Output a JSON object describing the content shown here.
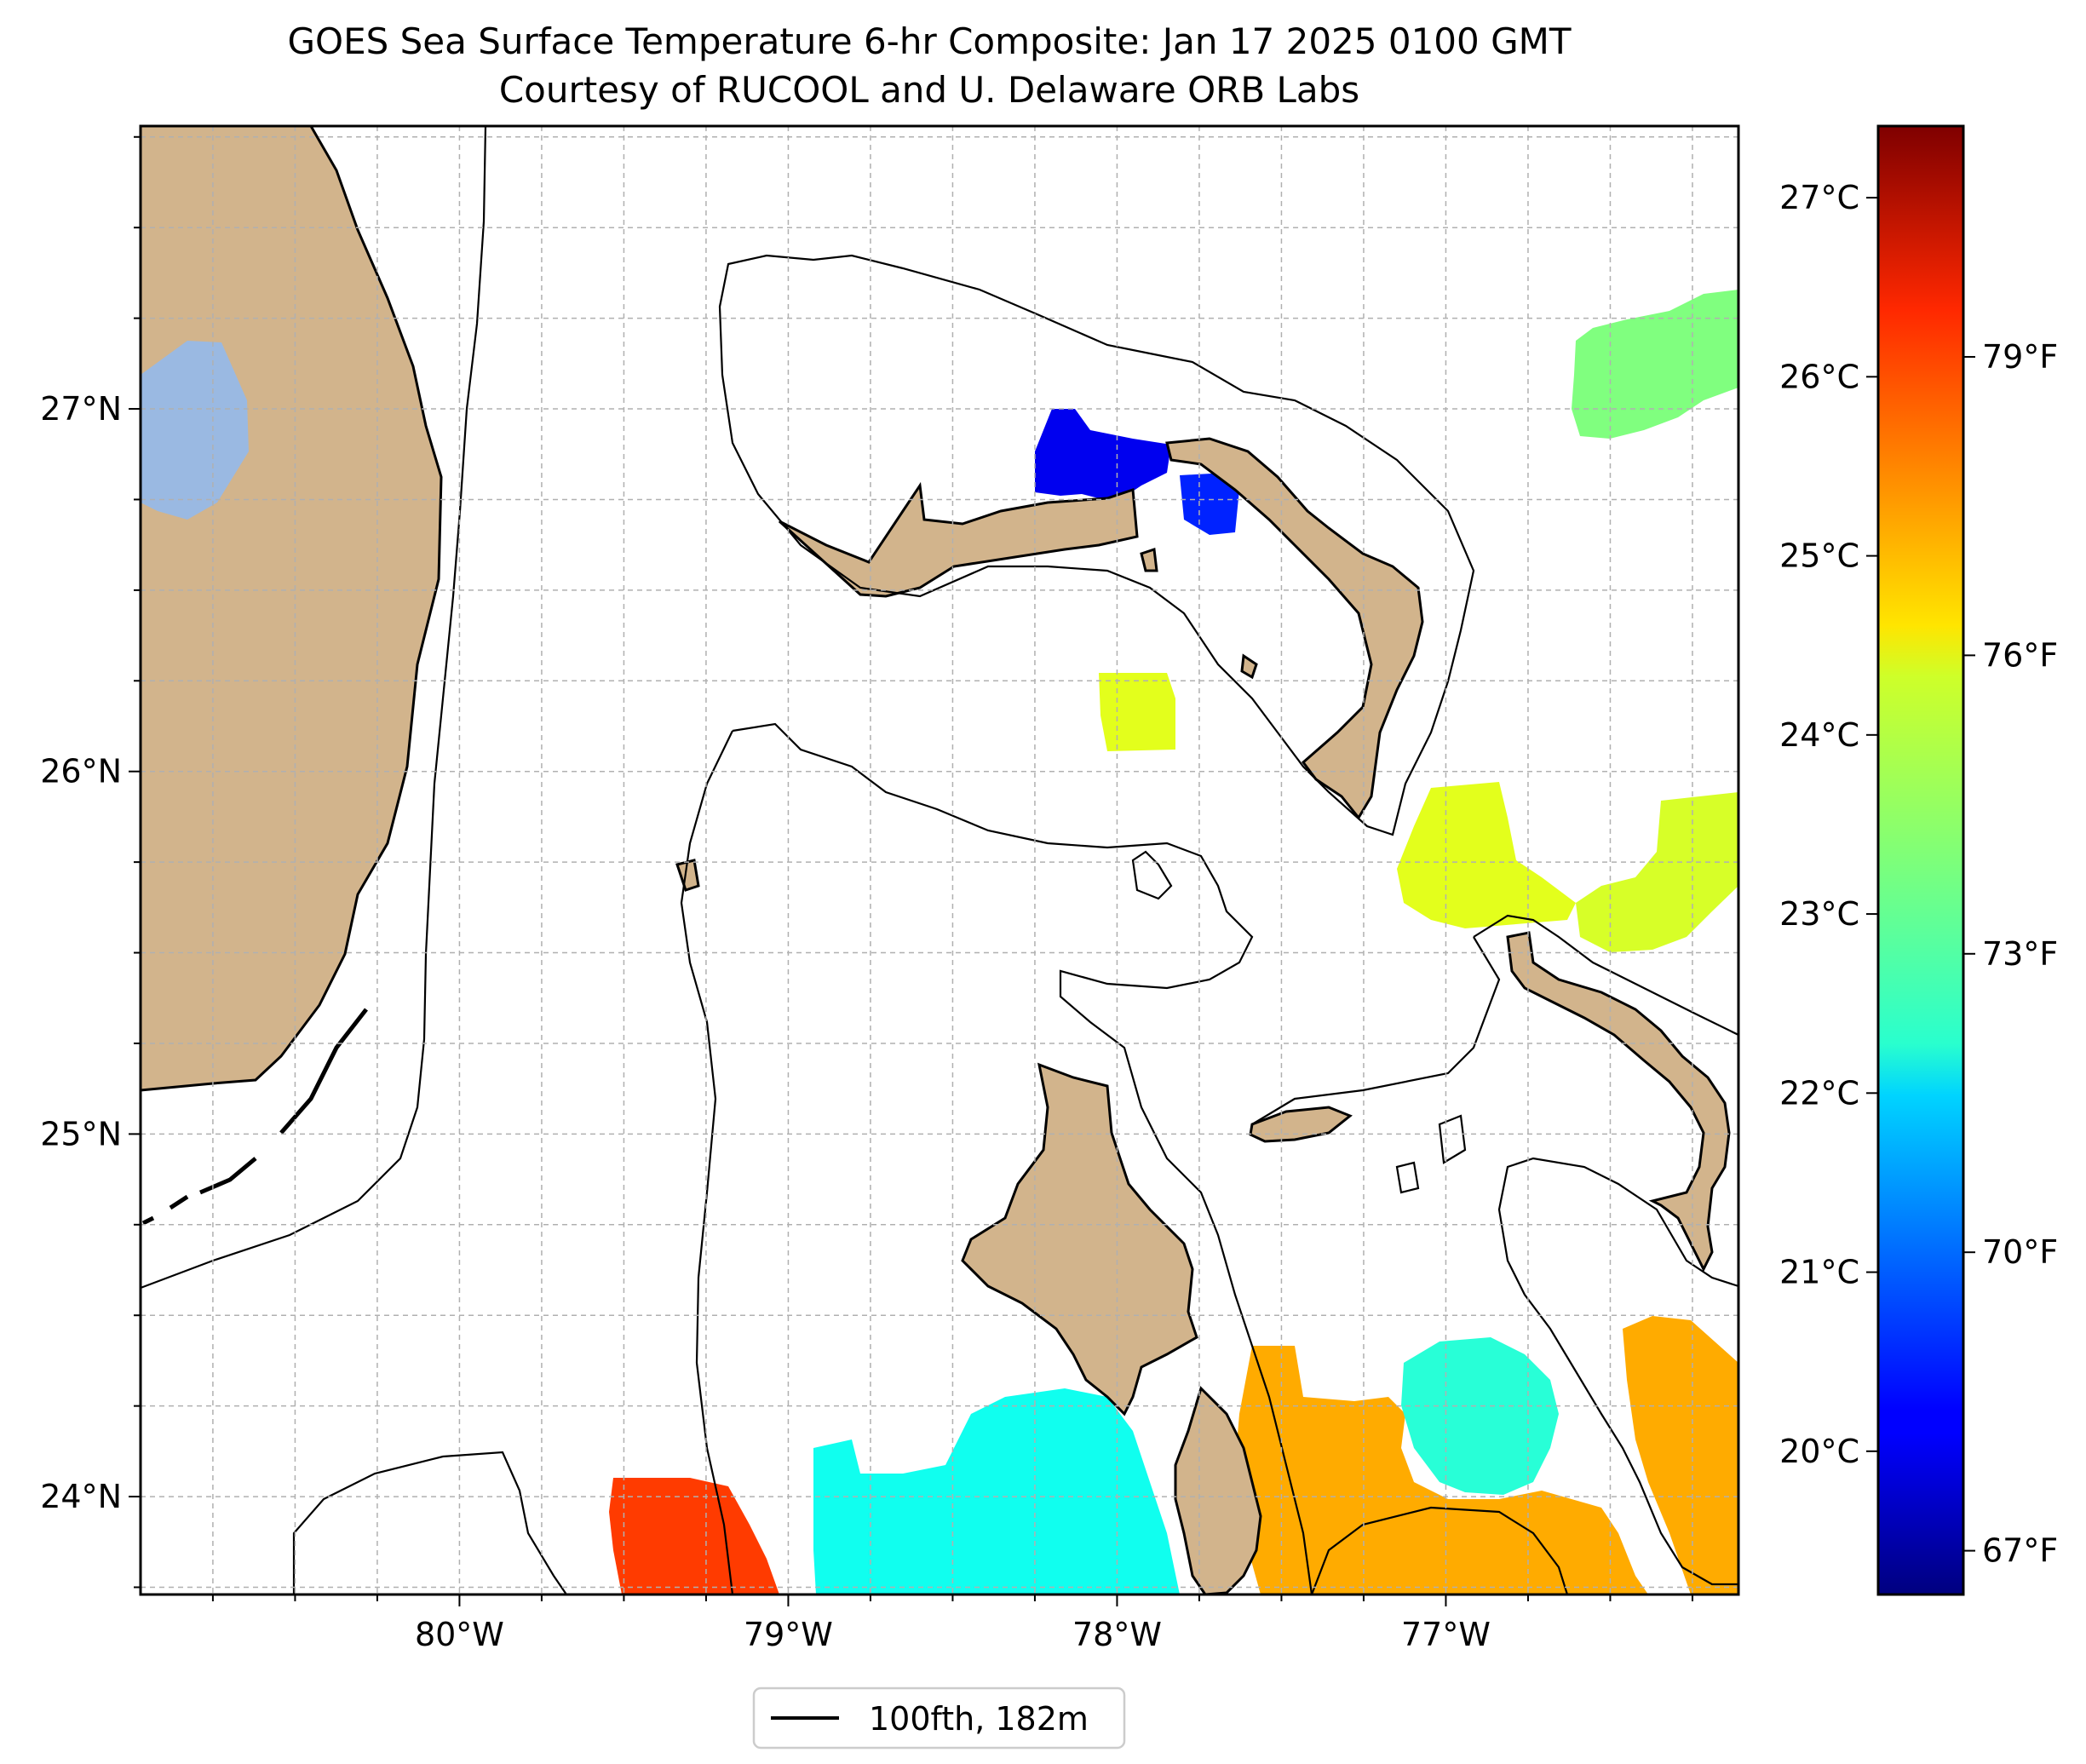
{
  "title": {
    "line1": "GOES Sea Surface Temperature 6-hr Composite: Jan 17 2025 0100 GMT",
    "line2": "Courtesy of RUCOOL and U. Delaware ORB Labs"
  },
  "map": {
    "lon_range": [
      -80.97,
      -76.11
    ],
    "lat_range": [
      23.73,
      27.78
    ],
    "lon_ticks": [
      {
        "value": -80,
        "label": "80°W"
      },
      {
        "value": -79,
        "label": "79°W"
      },
      {
        "value": -78,
        "label": "78°W"
      },
      {
        "value": -77,
        "label": "77°W"
      }
    ],
    "lat_ticks": [
      {
        "value": 24,
        "label": "24°N"
      },
      {
        "value": 25,
        "label": "25°N"
      },
      {
        "value": 26,
        "label": "26°N"
      },
      {
        "value": 27,
        "label": "27°N"
      }
    ],
    "gridlines": true,
    "land_color": "#d2b48c",
    "lake_color": "#9ab9e2"
  },
  "colorbar": {
    "colormap": "jet",
    "range_celsius": [
      19.2,
      27.4
    ],
    "celsius_ticks": [
      {
        "value": 20,
        "label": "20°C"
      },
      {
        "value": 21,
        "label": "21°C"
      },
      {
        "value": 22,
        "label": "22°C"
      },
      {
        "value": 23,
        "label": "23°C"
      },
      {
        "value": 24,
        "label": "24°C"
      },
      {
        "value": 25,
        "label": "25°C"
      },
      {
        "value": 26,
        "label": "26°C"
      },
      {
        "value": 27,
        "label": "27°C"
      }
    ],
    "fahrenheit_ticks": [
      {
        "value": 67,
        "label": "67°F"
      },
      {
        "value": 70,
        "label": "70°F"
      },
      {
        "value": 73,
        "label": "73°F"
      },
      {
        "value": 76,
        "label": "76°F"
      },
      {
        "value": 79,
        "label": "79°F"
      }
    ]
  },
  "sst_patches": [
    {
      "region": "northwest Grand Bahama Bank",
      "temp_c": 20.1
    },
    {
      "region": "east of Grand Bahama Bank",
      "temp_c": 20.5
    },
    {
      "region": "northeast Providence Channel",
      "temp_c": 23.3
    },
    {
      "region": "central Providence Channel",
      "temp_c": 24.1
    },
    {
      "region": "north of Eleuthera",
      "temp_c": 24.1
    },
    {
      "region": "northeast of Eleuthera",
      "temp_c": 24.0
    },
    {
      "region": "southwest, Florida Straits",
      "temp_c": 25.9
    },
    {
      "region": "south-central",
      "temp_c": 22.4
    },
    {
      "region": "southeast, Exuma Sound",
      "temp_c": 25.0
    },
    {
      "region": "Tongue of the Ocean",
      "temp_c": 22.6
    }
  ],
  "legend": {
    "label": "100fth, 182m"
  }
}
